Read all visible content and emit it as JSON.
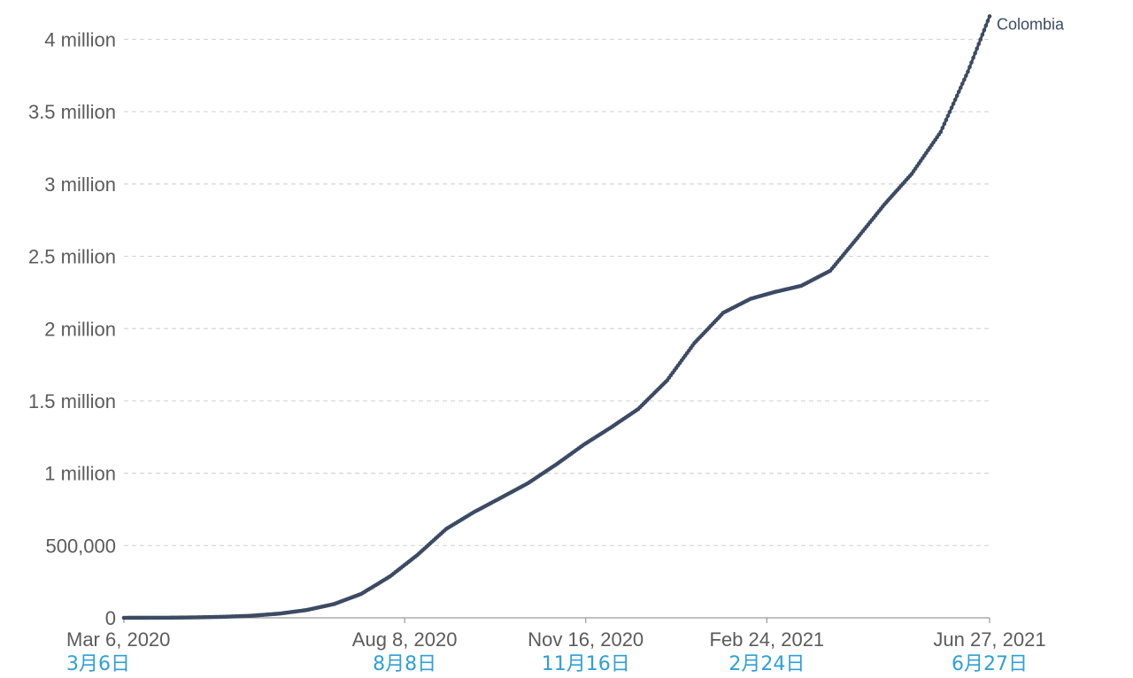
{
  "colors": {
    "series": "#3c4b63",
    "grid": "#d6d6d6",
    "axis": "#9a9a9a",
    "tick_text": "#5b5b5b",
    "tick_text_cn": "#2f9fd8"
  },
  "chart_data": {
    "type": "line",
    "title": "",
    "xlabel": "",
    "ylabel": "",
    "grid": "horizontal dashed",
    "ylim": [
      0,
      4150000
    ],
    "xlim": [
      "2020-03-06",
      "2021-06-27"
    ],
    "y_ticks": [
      {
        "value": 0,
        "label": "0"
      },
      {
        "value": 500000,
        "label": "500,000"
      },
      {
        "value": 1000000,
        "label": "1 million"
      },
      {
        "value": 1500000,
        "label": "1.5 million"
      },
      {
        "value": 2000000,
        "label": "2 million"
      },
      {
        "value": 2500000,
        "label": "2.5 million"
      },
      {
        "value": 3000000,
        "label": "3 million"
      },
      {
        "value": 3500000,
        "label": "3.5 million"
      },
      {
        "value": 4000000,
        "label": "4 million"
      }
    ],
    "x_ticks": [
      {
        "date": "2020-03-06",
        "label": "Mar 6, 2020",
        "label_cn": "3月6日"
      },
      {
        "date": "2020-08-08",
        "label": "Aug 8, 2020",
        "label_cn": "8月8日"
      },
      {
        "date": "2020-11-16",
        "label": "Nov 16, 2020",
        "label_cn": "11月16日"
      },
      {
        "date": "2021-02-24",
        "label": "Feb 24, 2021",
        "label_cn": "2月24日"
      },
      {
        "date": "2021-06-27",
        "label": "Jun 27, 2021",
        "label_cn": "6月27日"
      }
    ],
    "series": [
      {
        "name": "Colombia",
        "points": [
          [
            "2020-03-06",
            0
          ],
          [
            "2020-03-31",
            800
          ],
          [
            "2020-04-15",
            3000
          ],
          [
            "2020-04-30",
            7000
          ],
          [
            "2020-05-15",
            14000
          ],
          [
            "2020-05-31",
            29000
          ],
          [
            "2020-06-15",
            54000
          ],
          [
            "2020-06-30",
            95000
          ],
          [
            "2020-07-15",
            165000
          ],
          [
            "2020-07-31",
            287000
          ],
          [
            "2020-08-15",
            434000
          ],
          [
            "2020-08-31",
            615000
          ],
          [
            "2020-09-15",
            729000
          ],
          [
            "2020-09-30",
            829000
          ],
          [
            "2020-10-15",
            930000
          ],
          [
            "2020-10-31",
            1063000
          ],
          [
            "2020-11-15",
            1198000
          ],
          [
            "2020-11-30",
            1317000
          ],
          [
            "2020-12-15",
            1444000
          ],
          [
            "2020-12-31",
            1643000
          ],
          [
            "2021-01-15",
            1900000
          ],
          [
            "2021-01-31",
            2110000
          ],
          [
            "2021-02-15",
            2206000
          ],
          [
            "2021-02-28",
            2252000
          ],
          [
            "2021-03-15",
            2296000
          ],
          [
            "2021-03-31",
            2400000
          ],
          [
            "2021-04-15",
            2627000
          ],
          [
            "2021-04-30",
            2860000
          ],
          [
            "2021-05-15",
            3070000
          ],
          [
            "2021-05-31",
            3360000
          ],
          [
            "2021-06-15",
            3777000
          ],
          [
            "2021-06-27",
            4160000
          ]
        ]
      }
    ]
  }
}
